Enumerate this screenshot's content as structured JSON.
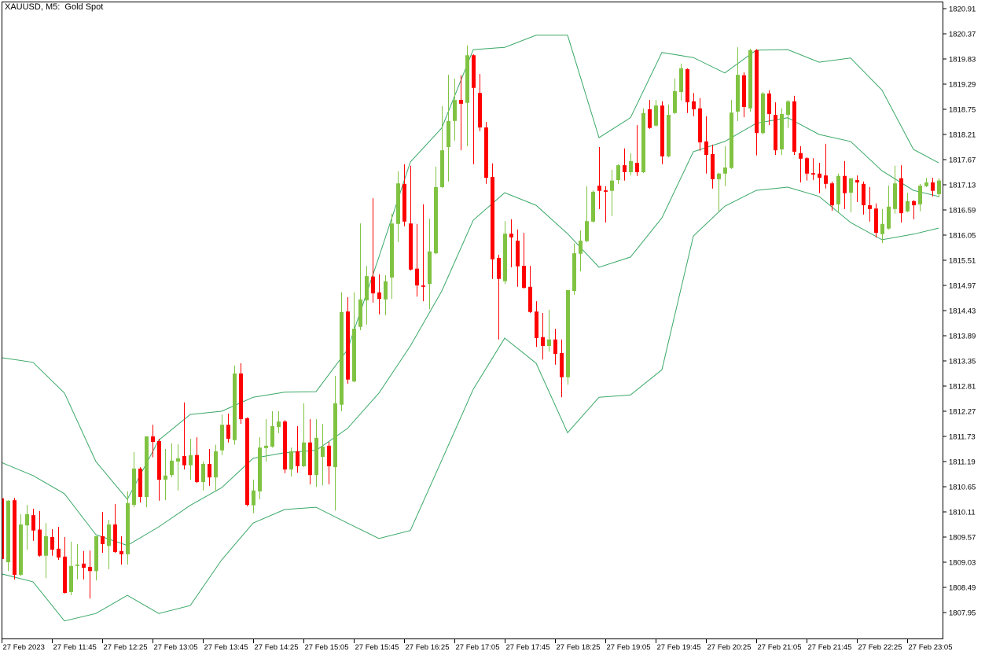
{
  "header": {
    "title": "XAUUSD, M5:  Gold Spot"
  },
  "chart_data": {
    "type": "candlestick",
    "symbol": "XAUUSD",
    "timeframe": "M5",
    "title": "XAUUSD, M5:  Gold Spot",
    "colors": {
      "bull": "#80c342",
      "bear": "#ff0000",
      "bands": "#3aa867",
      "axis": "#000000",
      "background": "#ffffff"
    },
    "ylim": [
      1807.7,
      1821.05
    ],
    "y_ticks": [
      "1820.91",
      "1820.37",
      "1819.83",
      "1819.29",
      "1818.75",
      "1818.21",
      "1817.67",
      "1817.13",
      "1816.59",
      "1816.05",
      "1815.51",
      "1814.97",
      "1814.43",
      "1813.89",
      "1813.35",
      "1812.81",
      "1812.27",
      "1811.73",
      "1811.19",
      "1810.65",
      "1810.11",
      "1809.57",
      "1809.03",
      "1808.49",
      "1807.95"
    ],
    "x_ticks": [
      "27 Feb 2023",
      "27 Feb 11:45",
      "27 Feb 12:25",
      "27 Feb 13:05",
      "27 Feb 13:45",
      "27 Feb 14:25",
      "27 Feb 15:05",
      "27 Feb 15:45",
      "27 Feb 16:25",
      "27 Feb 17:05",
      "27 Feb 17:45",
      "27 Feb 18:25",
      "27 Feb 19:05",
      "27 Feb 19:45",
      "27 Feb 20:25",
      "27 Feb 21:05",
      "27 Feb 21:45",
      "27 Feb 22:25",
      "27 Feb 23:05"
    ],
    "candle_fields": [
      "time",
      "open",
      "high",
      "low",
      "close"
    ],
    "candles": [
      [
        "11:05",
        1810.4,
        1810.45,
        1809.05,
        1809.1
      ],
      [
        "11:10",
        1809.03,
        1810.36,
        1808.84,
        1810.35
      ],
      [
        "11:15",
        1810.36,
        1810.41,
        1808.66,
        1808.76
      ],
      [
        "11:20",
        1808.76,
        1810.06,
        1808.73,
        1809.84
      ],
      [
        "11:25",
        1809.82,
        1810.26,
        1809.3,
        1810.06
      ],
      [
        "11:30",
        1810.04,
        1810.18,
        1809.49,
        1809.71
      ],
      [
        "11:35",
        1809.73,
        1810.13,
        1809.15,
        1809.17
      ],
      [
        "11:40",
        1809.17,
        1809.87,
        1808.69,
        1809.59
      ],
      [
        "11:45",
        1809.57,
        1809.74,
        1809.17,
        1809.3
      ],
      [
        "11:50",
        1809.32,
        1809.79,
        1809.08,
        1809.13
      ],
      [
        "11:55",
        1809.15,
        1809.57,
        1808.36,
        1808.37
      ],
      [
        "12:00",
        1808.39,
        1809.47,
        1808.32,
        1808.95
      ],
      [
        "12:05",
        1808.95,
        1809.42,
        1808.66,
        1808.98
      ],
      [
        "12:10",
        1809.0,
        1809.27,
        1808.66,
        1808.91
      ],
      [
        "12:15",
        1808.93,
        1809.28,
        1808.25,
        1808.84
      ],
      [
        "12:20",
        1808.84,
        1809.59,
        1808.64,
        1809.59
      ],
      [
        "12:25",
        1809.59,
        1810.11,
        1809.23,
        1809.42
      ],
      [
        "12:30",
        1809.38,
        1809.94,
        1808.88,
        1809.84
      ],
      [
        "12:35",
        1809.84,
        1810.28,
        1809.23,
        1809.25
      ],
      [
        "12:40",
        1809.27,
        1809.59,
        1808.98,
        1809.2
      ],
      [
        "12:45",
        1809.2,
        1810.55,
        1808.98,
        1810.3
      ],
      [
        "12:50",
        1810.26,
        1811.39,
        1810.21,
        1811.04
      ],
      [
        "12:55",
        1811.04,
        1811.07,
        1810.31,
        1810.43
      ],
      [
        "13:00",
        1810.43,
        1811.73,
        1810.21,
        1811.73
      ],
      [
        "13:05",
        1811.73,
        1811.98,
        1811.28,
        1811.61
      ],
      [
        "13:10",
        1811.63,
        1811.68,
        1810.35,
        1810.8
      ],
      [
        "13:15",
        1810.8,
        1811.46,
        1810.36,
        1810.89
      ],
      [
        "13:20",
        1810.9,
        1811.58,
        1810.85,
        1811.21
      ],
      [
        "13:25",
        1811.19,
        1811.56,
        1810.57,
        1811.26
      ],
      [
        "13:30",
        1811.31,
        1812.46,
        1811.02,
        1811.11
      ],
      [
        "13:35",
        1811.11,
        1811.68,
        1810.8,
        1811.33
      ],
      [
        "13:40",
        1811.33,
        1811.71,
        1810.73,
        1810.75
      ],
      [
        "13:45",
        1810.75,
        1811.19,
        1810.57,
        1811.14
      ],
      [
        "13:50",
        1811.14,
        1811.46,
        1810.67,
        1810.85
      ],
      [
        "13:55",
        1810.85,
        1811.55,
        1810.55,
        1811.41
      ],
      [
        "14:00",
        1811.43,
        1812.2,
        1811.33,
        1811.98
      ],
      [
        "14:05",
        1811.98,
        1812.22,
        1811.6,
        1811.68
      ],
      [
        "14:10",
        1811.65,
        1813.25,
        1811.55,
        1813.08
      ],
      [
        "14:15",
        1813.08,
        1813.3,
        1812.0,
        1812.1
      ],
      [
        "14:20",
        1812.12,
        1812.14,
        1810.23,
        1810.26
      ],
      [
        "14:25",
        1810.25,
        1810.8,
        1810.08,
        1810.57
      ],
      [
        "14:30",
        1810.55,
        1811.71,
        1810.38,
        1811.49
      ],
      [
        "14:35",
        1811.48,
        1812.1,
        1811.19,
        1811.53
      ],
      [
        "14:40",
        1811.51,
        1812.27,
        1811.49,
        1811.95
      ],
      [
        "14:45",
        1811.93,
        1812.27,
        1811.8,
        1812.05
      ],
      [
        "14:50",
        1812.05,
        1812.08,
        1810.94,
        1811.02
      ],
      [
        "14:55",
        1811.02,
        1811.49,
        1810.87,
        1811.41
      ],
      [
        "15:00",
        1811.41,
        1811.95,
        1810.95,
        1811.09
      ],
      [
        "15:05",
        1811.09,
        1812.44,
        1811.07,
        1811.6
      ],
      [
        "15:10",
        1811.6,
        1812.1,
        1810.7,
        1810.9
      ],
      [
        "15:15",
        1810.9,
        1812.1,
        1810.65,
        1811.7
      ],
      [
        "15:20",
        1811.29,
        1812.0,
        1810.68,
        1811.51
      ],
      [
        "15:25",
        1811.53,
        1811.61,
        1810.7,
        1811.09
      ],
      [
        "15:30",
        1811.07,
        1813.03,
        1810.14,
        1812.44
      ],
      [
        "15:35",
        1812.41,
        1814.82,
        1812.27,
        1814.4
      ],
      [
        "15:40",
        1814.41,
        1814.72,
        1812.86,
        1812.95
      ],
      [
        "15:45",
        1812.91,
        1814.82,
        1812.89,
        1814.04
      ],
      [
        "15:50",
        1814.08,
        1816.3,
        1814.01,
        1814.67
      ],
      [
        "15:55",
        1814.65,
        1815.39,
        1814.13,
        1815.17
      ],
      [
        "16:00",
        1815.16,
        1816.84,
        1814.6,
        1814.8
      ],
      [
        "16:05",
        1814.82,
        1815.21,
        1814.35,
        1814.68
      ],
      [
        "16:10",
        1814.67,
        1815.19,
        1814.33,
        1815.06
      ],
      [
        "16:15",
        1815.14,
        1816.51,
        1814.68,
        1816.3
      ],
      [
        "16:20",
        1816.29,
        1817.42,
        1815.9,
        1817.16
      ],
      [
        "16:25",
        1817.15,
        1817.57,
        1816.24,
        1816.34
      ],
      [
        "16:30",
        1816.3,
        1817.54,
        1815.29,
        1815.31
      ],
      [
        "16:35",
        1815.33,
        1816.29,
        1814.73,
        1814.97
      ],
      [
        "16:40",
        1814.97,
        1816.71,
        1814.63,
        1814.94
      ],
      [
        "16:45",
        1815.0,
        1816.4,
        1814.46,
        1815.7
      ],
      [
        "16:50",
        1815.66,
        1817.52,
        1815.64,
        1817.08
      ],
      [
        "16:55",
        1817.08,
        1818.82,
        1817.06,
        1817.87
      ],
      [
        "17:00",
        1817.94,
        1819.49,
        1817.2,
        1818.5
      ],
      [
        "17:05",
        1818.5,
        1819.41,
        1818.08,
        1818.95
      ],
      [
        "17:10",
        1818.95,
        1819.48,
        1817.87,
        1818.87
      ],
      [
        "17:15",
        1818.89,
        1820.12,
        1817.96,
        1819.91
      ],
      [
        "17:20",
        1819.91,
        1819.93,
        1817.57,
        1819.21
      ],
      [
        "17:25",
        1819.1,
        1819.51,
        1818.28,
        1818.36
      ],
      [
        "17:30",
        1818.36,
        1818.48,
        1817.15,
        1817.28
      ],
      [
        "17:35",
        1817.3,
        1817.59,
        1815.11,
        1815.53
      ],
      [
        "17:40",
        1815.56,
        1815.63,
        1813.81,
        1815.11
      ],
      [
        "17:45",
        1815.06,
        1816.35,
        1815.0,
        1816.08
      ],
      [
        "17:50",
        1816.08,
        1816.39,
        1815.36,
        1816.0
      ],
      [
        "17:55",
        1815.93,
        1816.17,
        1814.94,
        1815.38
      ],
      [
        "18:00",
        1815.39,
        1816.1,
        1814.9,
        1814.92
      ],
      [
        "18:05",
        1814.94,
        1815.39,
        1814.38,
        1814.4
      ],
      [
        "18:10",
        1814.41,
        1814.63,
        1813.65,
        1813.84
      ],
      [
        "18:15",
        1813.86,
        1814.38,
        1813.38,
        1813.67
      ],
      [
        "18:20",
        1813.67,
        1814.45,
        1813.55,
        1813.81
      ],
      [
        "18:25",
        1813.81,
        1814.04,
        1813.27,
        1813.5
      ],
      [
        "18:30",
        1813.52,
        1813.81,
        1812.57,
        1813.0
      ],
      [
        "18:35",
        1813.0,
        1814.87,
        1812.84,
        1814.87
      ],
      [
        "18:40",
        1814.85,
        1815.87,
        1814.77,
        1815.66
      ],
      [
        "18:45",
        1815.65,
        1816.15,
        1815.27,
        1815.93
      ],
      [
        "18:50",
        1815.92,
        1817.1,
        1815.9,
        1816.35
      ],
      [
        "18:55",
        1816.34,
        1817.01,
        1816.32,
        1816.98
      ],
      [
        "19:00",
        1817.11,
        1817.94,
        1816.61,
        1817.0
      ],
      [
        "19:05",
        1817.01,
        1817.1,
        1816.32,
        1816.98
      ],
      [
        "19:10",
        1817.0,
        1817.45,
        1816.46,
        1817.22
      ],
      [
        "19:15",
        1817.23,
        1817.57,
        1817.15,
        1817.55
      ],
      [
        "19:20",
        1817.55,
        1817.91,
        1817.22,
        1817.4
      ],
      [
        "19:25",
        1817.4,
        1817.81,
        1817.33,
        1817.64
      ],
      [
        "19:30",
        1817.6,
        1818.41,
        1817.32,
        1817.4
      ],
      [
        "19:35",
        1817.4,
        1818.77,
        1817.38,
        1818.67
      ],
      [
        "19:40",
        1818.75,
        1818.95,
        1818.33,
        1818.35
      ],
      [
        "19:45",
        1818.4,
        1818.95,
        1818.38,
        1818.83
      ],
      [
        "19:50",
        1818.83,
        1818.92,
        1817.57,
        1817.74
      ],
      [
        "19:55",
        1817.74,
        1818.85,
        1817.72,
        1818.63
      ],
      [
        "20:00",
        1818.67,
        1819.41,
        1818.65,
        1819.14
      ],
      [
        "20:05",
        1819.12,
        1819.73,
        1818.94,
        1819.63
      ],
      [
        "20:10",
        1819.61,
        1819.63,
        1818.67,
        1818.9
      ],
      [
        "20:15",
        1818.92,
        1819.1,
        1818.6,
        1818.75
      ],
      [
        "20:20",
        1818.77,
        1818.99,
        1817.86,
        1818.04
      ],
      [
        "20:25",
        1818.06,
        1818.6,
        1817.37,
        1817.77
      ],
      [
        "20:30",
        1817.79,
        1817.99,
        1817.05,
        1817.25
      ],
      [
        "20:35",
        1817.25,
        1817.39,
        1816.56,
        1817.37
      ],
      [
        "20:40",
        1817.37,
        1817.96,
        1817.1,
        1817.5
      ],
      [
        "20:45",
        1817.49,
        1818.95,
        1817.47,
        1818.68
      ],
      [
        "20:50",
        1818.7,
        1820.08,
        1818.5,
        1819.49
      ],
      [
        "20:55",
        1819.48,
        1819.54,
        1818.58,
        1818.8
      ],
      [
        "21:00",
        1818.77,
        1820.05,
        1818.7,
        1820.02
      ],
      [
        "21:05",
        1820.02,
        1820.04,
        1817.76,
        1818.24
      ],
      [
        "21:10",
        1818.24,
        1819.12,
        1818.21,
        1819.09
      ],
      [
        "21:15",
        1819.09,
        1819.16,
        1818.41,
        1818.65
      ],
      [
        "21:20",
        1818.63,
        1818.9,
        1817.77,
        1817.87
      ],
      [
        "21:25",
        1817.89,
        1818.77,
        1817.77,
        1818.65
      ],
      [
        "21:30",
        1818.63,
        1818.95,
        1818.35,
        1818.92
      ],
      [
        "21:35",
        1818.92,
        1819.04,
        1817.77,
        1817.84
      ],
      [
        "21:40",
        1817.81,
        1817.96,
        1817.18,
        1817.69
      ],
      [
        "21:45",
        1817.7,
        1817.72,
        1817.22,
        1817.37
      ],
      [
        "21:50",
        1817.38,
        1817.7,
        1817.23,
        1817.35
      ],
      [
        "21:55",
        1817.37,
        1817.6,
        1816.95,
        1817.28
      ],
      [
        "22:00",
        1817.33,
        1818.01,
        1817.05,
        1817.15
      ],
      [
        "22:05",
        1817.16,
        1817.2,
        1816.57,
        1816.69
      ],
      [
        "22:10",
        1816.71,
        1817.37,
        1816.54,
        1817.32
      ],
      [
        "22:15",
        1817.32,
        1817.64,
        1816.61,
        1816.95
      ],
      [
        "22:20",
        1816.96,
        1817.27,
        1816.54,
        1817.27
      ],
      [
        "22:25",
        1817.23,
        1817.33,
        1816.76,
        1817.18
      ],
      [
        "22:30",
        1817.15,
        1817.2,
        1816.49,
        1816.69
      ],
      [
        "22:35",
        1816.69,
        1817.08,
        1816.34,
        1816.61
      ],
      [
        "22:40",
        1816.62,
        1816.73,
        1816.0,
        1816.1
      ],
      [
        "22:45",
        1816.07,
        1816.61,
        1815.88,
        1816.29
      ],
      [
        "22:50",
        1816.19,
        1817.11,
        1816.17,
        1816.66
      ],
      [
        "22:55",
        1816.61,
        1817.54,
        1816.51,
        1817.16
      ],
      [
        "23:00",
        1817.27,
        1817.55,
        1816.32,
        1816.52
      ],
      [
        "23:05",
        1816.56,
        1816.96,
        1816.54,
        1816.78
      ],
      [
        "23:10",
        1816.78,
        1816.8,
        1816.39,
        1816.69
      ],
      [
        "23:15",
        1816.71,
        1817.15,
        1816.56,
        1817.11
      ],
      [
        "23:20",
        1817.1,
        1817.28,
        1817.08,
        1817.18
      ],
      [
        "23:25",
        1817.18,
        1817.28,
        1816.88,
        1817.0
      ],
      [
        "23:30",
        1816.93,
        1817.27,
        1816.86,
        1817.22
      ]
    ],
    "bollinger_bands": {
      "times": [
        "11:05",
        "11:30",
        "11:55",
        "12:20",
        "12:45",
        "13:10",
        "13:35",
        "14:00",
        "14:25",
        "14:50",
        "15:15",
        "15:40",
        "16:05",
        "16:30",
        "16:55",
        "17:20",
        "17:45",
        "18:10",
        "18:35",
        "19:00",
        "19:25",
        "19:50",
        "20:15",
        "20:40",
        "21:05",
        "21:30",
        "21:55",
        "22:20",
        "22:45",
        "23:10",
        "23:30"
      ],
      "upper": [
        1813.42,
        1813.32,
        1812.66,
        1811.19,
        1810.38,
        1811.65,
        1812.2,
        1812.27,
        1812.57,
        1812.68,
        1812.69,
        1813.59,
        1815.58,
        1817.62,
        1818.35,
        1820.03,
        1820.08,
        1820.34,
        1820.34,
        1818.14,
        1818.57,
        1819.97,
        1819.86,
        1819.53,
        1820.02,
        1820.03,
        1819.76,
        1819.85,
        1819.16,
        1817.89,
        1817.6
      ],
      "middle": [
        1811.17,
        1810.89,
        1810.5,
        1809.62,
        1809.39,
        1809.79,
        1810.25,
        1810.63,
        1811.26,
        1811.38,
        1811.43,
        1811.9,
        1812.66,
        1813.67,
        1814.85,
        1816.37,
        1816.96,
        1816.69,
        1816.08,
        1815.36,
        1815.58,
        1816.42,
        1817.84,
        1818.06,
        1818.45,
        1818.57,
        1818.21,
        1818.06,
        1817.43,
        1817.01,
        1816.88
      ],
      "lower": [
        1808.78,
        1808.61,
        1807.77,
        1807.93,
        1808.32,
        1807.93,
        1808.1,
        1809.08,
        1809.87,
        1810.16,
        1810.21,
        1809.87,
        1809.54,
        1809.71,
        1811.22,
        1812.74,
        1813.84,
        1813.3,
        1811.81,
        1812.57,
        1812.62,
        1813.16,
        1816.03,
        1816.67,
        1817.01,
        1817.08,
        1816.88,
        1816.32,
        1815.95,
        1816.07,
        1816.2
      ]
    },
    "grid": false,
    "legend": "none"
  }
}
